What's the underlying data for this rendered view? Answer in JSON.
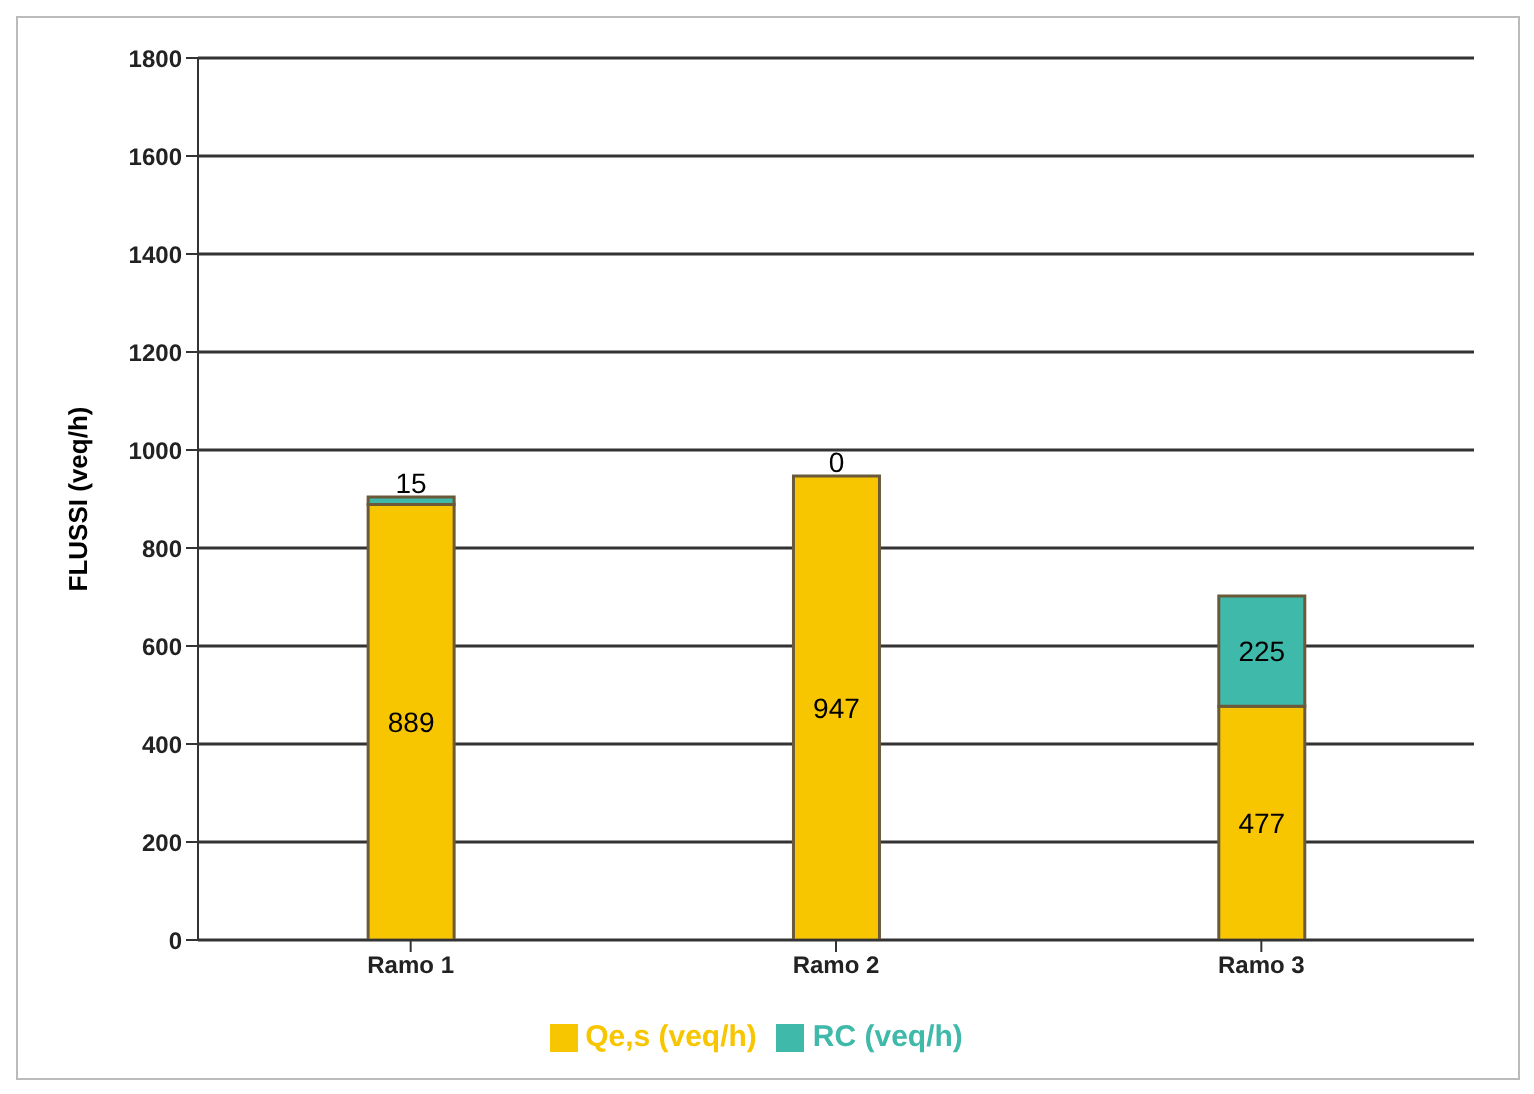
{
  "chart_data": {
    "type": "bar",
    "stacked": true,
    "ylabel": "FLUSSI (veq/h)",
    "categories": [
      "Ramo 1",
      "Ramo 2",
      "Ramo 3"
    ],
    "series": [
      {
        "name": "Qe,s (veq/h)",
        "color": "#f7c600",
        "values": [
          889,
          947,
          477
        ]
      },
      {
        "name": "RC (veq/h)",
        "color": "#3fb9a9",
        "values": [
          15,
          0,
          225
        ]
      }
    ],
    "ylim": [
      0,
      1800
    ],
    "yticks": [
      0,
      200,
      400,
      600,
      800,
      1000,
      1200,
      1400,
      1600,
      1800
    ],
    "grid": "y",
    "legend": "bottom",
    "data_labels": true
  }
}
